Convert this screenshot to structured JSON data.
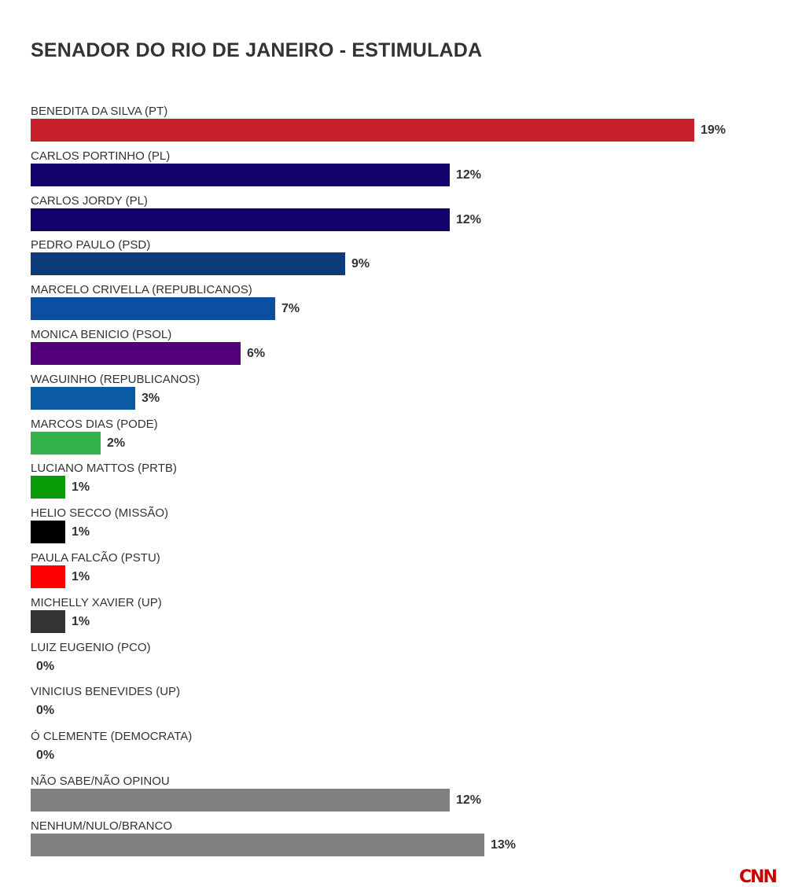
{
  "chart_data": {
    "type": "bar",
    "orientation": "horizontal",
    "title": "SENADOR DO RIO DE JANEIRO - ESTIMULADA",
    "categories": [
      "BENEDITA DA SILVA (PT)",
      "CARLOS PORTINHO (PL)",
      "CARLOS JORDY (PL)",
      "PEDRO PAULO (PSD)",
      "MARCELO CRIVELLA (REPUBLICANOS)",
      "MONICA BENICIO (PSOL)",
      "WAGUINHO (REPUBLICANOS)",
      "MARCOS DIAS (PODE)",
      "LUCIANO MATTOS (PRTB)",
      "HELIO SECCO (MISSÃO)",
      "PAULA FALCÃO (PSTU)",
      "MICHELLY XAVIER (UP)",
      "LUIZ EUGENIO (PCO)",
      "VINICIUS BENEVIDES (UP)",
      "Ó CLEMENTE (DEMOCRATA)",
      "NÃO SABE/NÃO OPINOU",
      "NENHUM/NULO/BRANCO"
    ],
    "values": [
      19,
      12,
      12,
      9,
      7,
      6,
      3,
      2,
      1,
      1,
      1,
      1,
      0,
      0,
      0,
      12,
      13
    ],
    "value_labels": [
      "19%",
      "12%",
      "12%",
      "9%",
      "7%",
      "6%",
      "3%",
      "2%",
      "1%",
      "1%",
      "1%",
      "1%",
      "0%",
      "0%",
      "0%",
      "12%",
      "13%"
    ],
    "colors": [
      "#c8202a",
      "#14006b",
      "#14006b",
      "#0d3b7a",
      "#0b4ea2",
      "#54007a",
      "#0a5aa5",
      "#34b34a",
      "#089c08",
      "#000000",
      "#fe0000",
      "#333333",
      "#cccccc",
      "#cccccc",
      "#cccccc",
      "#808080",
      "#808080"
    ],
    "xlim": [
      0,
      19
    ],
    "grid": false,
    "legend": "none"
  },
  "brand": {
    "logo_text": "CNN",
    "logo_color": "#cc0000"
  }
}
